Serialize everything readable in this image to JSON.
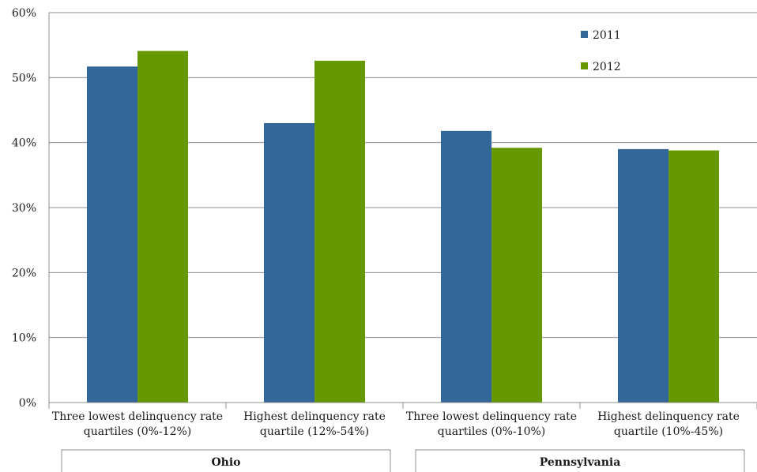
{
  "chart_data": {
    "type": "bar",
    "categories": [
      [
        "Three lowest delinquency rate",
        "quartiles (0%-12%)"
      ],
      [
        "Highest delinquency rate",
        "quartile (12%-54%)"
      ],
      [
        "Three lowest delinquency rate",
        "quartiles (0%-10%)"
      ],
      [
        "Highest delinquency rate",
        "quartile (10%-45%)"
      ]
    ],
    "groups": [
      {
        "label": "Ohio",
        "categories": [
          0,
          1
        ]
      },
      {
        "label": "Pennsylvania",
        "categories": [
          2,
          3
        ]
      }
    ],
    "series": [
      {
        "name": "2011",
        "color": "#336699",
        "values": [
          51.7,
          43.0,
          41.8,
          39.0
        ]
      },
      {
        "name": "2012",
        "color": "#669900",
        "values": [
          54.1,
          52.6,
          39.2,
          38.8
        ]
      }
    ],
    "ylim": [
      0,
      60
    ],
    "yticks": [
      "0%",
      "10%",
      "20%",
      "30%",
      "40%",
      "50%",
      "60%"
    ],
    "grid": true,
    "legend_position": "top-right"
  }
}
